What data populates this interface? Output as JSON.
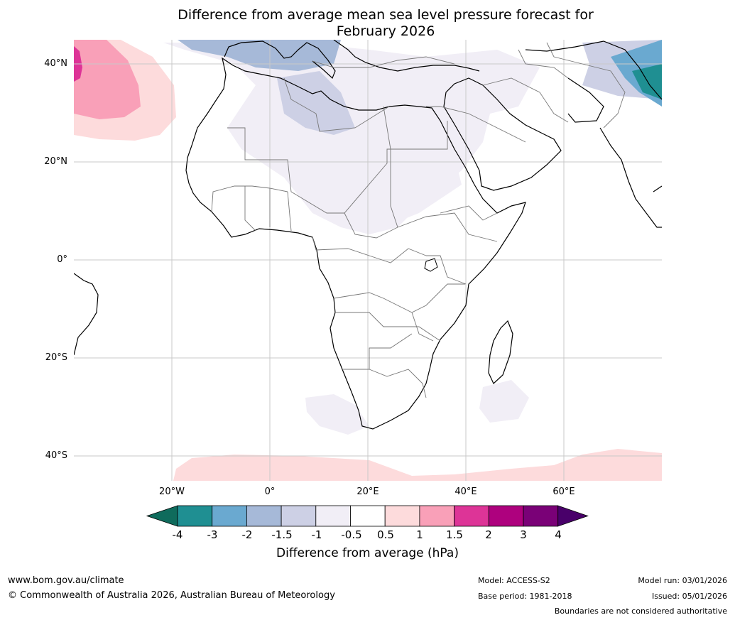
{
  "title": {
    "line1": "Difference from average mean sea level pressure forecast for",
    "line2": "February 2026"
  },
  "latitude_labels": [
    "40°N",
    "20°N",
    "0°",
    "20°S",
    "40°S"
  ],
  "longitude_labels": [
    "20°W",
    "0°",
    "20°E",
    "40°E",
    "60°E"
  ],
  "legend": {
    "title": "Difference from average (hPa)",
    "ticks": [
      "-4",
      "-3",
      "-2",
      "-1.5",
      "-1",
      "-0.5",
      "0.5",
      "1",
      "1.5",
      "2",
      "3",
      "4"
    ],
    "colors": {
      "below_min": "#0f6b5c",
      "bins": [
        "#1f8f92",
        "#6aa9d0",
        "#a6b9d8",
        "#cdd0e5",
        "#f1eef6",
        "#ffffff",
        "#fddbdc",
        "#f9a0b8",
        "#dd3497",
        "#ae017e",
        "#7a0177"
      ],
      "above_max": "#49006a"
    }
  },
  "footer": {
    "website": "www.bom.gov.au/climate",
    "copyright": "© Commonwealth of Australia 2026, Australian Bureau of Meteorology",
    "model": "Model: ACCESS-S2",
    "base_period": "Base period: 1981-2018",
    "model_run": "Model run: 03/01/2026",
    "issued": "Issued: 05/01/2026",
    "disclaimer": "Boundaries are not considered authoritative"
  }
}
